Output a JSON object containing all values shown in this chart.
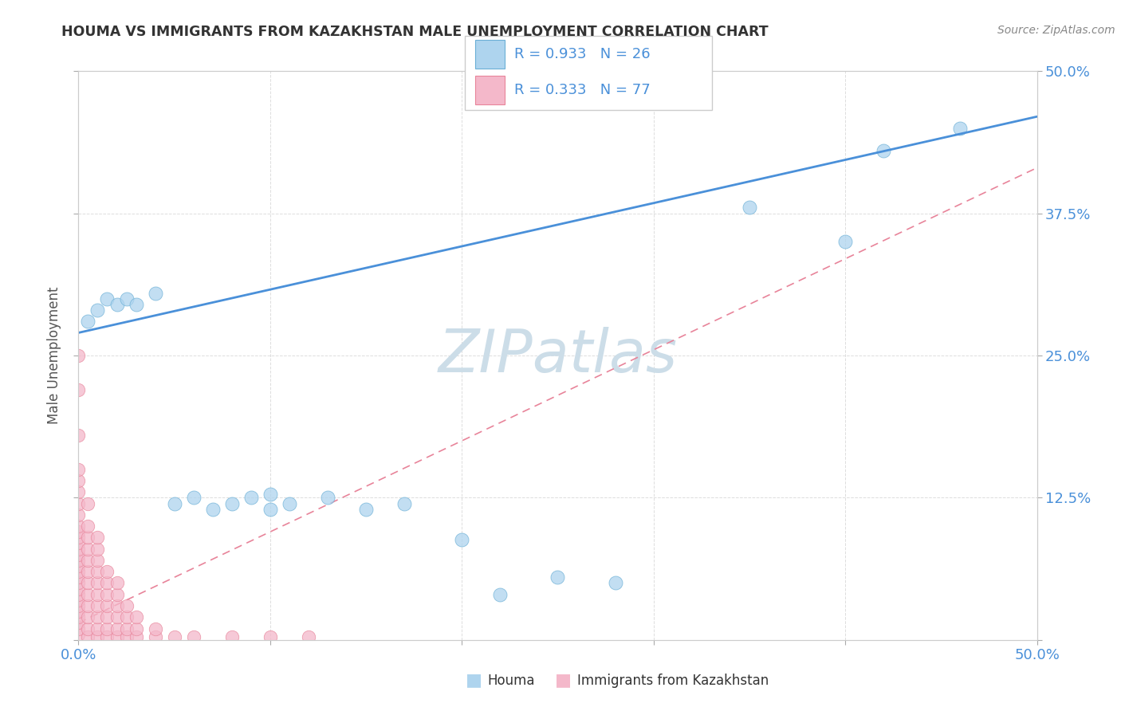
{
  "title": "HOUMA VS IMMIGRANTS FROM KAZAKHSTAN MALE UNEMPLOYMENT CORRELATION CHART",
  "source": "Source: ZipAtlas.com",
  "ylabel": "Male Unemployment",
  "xlim": [
    0,
    0.5
  ],
  "ylim": [
    0,
    0.5
  ],
  "houma_R": 0.933,
  "houma_N": 26,
  "immig_R": 0.333,
  "immig_N": 77,
  "houma_color": "#aed4ee",
  "immig_color": "#f4b8ca",
  "houma_edge_color": "#6aafd6",
  "immig_edge_color": "#e8849a",
  "houma_line_color": "#4a90d9",
  "immig_line_color": "#e8849a",
  "grid_color": "#dddddd",
  "watermark": "ZIPatlas",
  "watermark_color": "#ccdde8",
  "tick_label_color": "#4a90d9",
  "ylabel_color": "#555555",
  "title_color": "#333333",
  "source_color": "#888888",
  "background_color": "#ffffff",
  "houma_line_slope": 0.38,
  "houma_line_intercept": 0.27,
  "immig_line_slope": 0.8,
  "immig_line_intercept": 0.015,
  "houma_scatter": [
    [
      0.005,
      0.28
    ],
    [
      0.01,
      0.29
    ],
    [
      0.015,
      0.3
    ],
    [
      0.02,
      0.295
    ],
    [
      0.025,
      0.3
    ],
    [
      0.03,
      0.295
    ],
    [
      0.04,
      0.305
    ],
    [
      0.05,
      0.12
    ],
    [
      0.06,
      0.125
    ],
    [
      0.07,
      0.115
    ],
    [
      0.08,
      0.12
    ],
    [
      0.09,
      0.125
    ],
    [
      0.1,
      0.115
    ],
    [
      0.11,
      0.12
    ],
    [
      0.13,
      0.125
    ],
    [
      0.15,
      0.115
    ],
    [
      0.17,
      0.12
    ],
    [
      0.1,
      0.128
    ],
    [
      0.2,
      0.088
    ],
    [
      0.22,
      0.04
    ],
    [
      0.25,
      0.055
    ],
    [
      0.28,
      0.05
    ],
    [
      0.35,
      0.38
    ],
    [
      0.4,
      0.35
    ],
    [
      0.42,
      0.43
    ],
    [
      0.46,
      0.45
    ]
  ],
  "immig_scatter": [
    [
      0.0,
      0.005
    ],
    [
      0.0,
      0.01
    ],
    [
      0.0,
      0.015
    ],
    [
      0.0,
      0.02
    ],
    [
      0.0,
      0.025
    ],
    [
      0.0,
      0.03
    ],
    [
      0.0,
      0.035
    ],
    [
      0.0,
      0.04
    ],
    [
      0.0,
      0.045
    ],
    [
      0.0,
      0.05
    ],
    [
      0.0,
      0.055
    ],
    [
      0.0,
      0.06
    ],
    [
      0.0,
      0.065
    ],
    [
      0.0,
      0.07
    ],
    [
      0.0,
      0.075
    ],
    [
      0.0,
      0.08
    ],
    [
      0.0,
      0.085
    ],
    [
      0.0,
      0.09
    ],
    [
      0.0,
      0.095
    ],
    [
      0.0,
      0.1
    ],
    [
      0.0,
      0.11
    ],
    [
      0.0,
      0.12
    ],
    [
      0.0,
      0.13
    ],
    [
      0.0,
      0.14
    ],
    [
      0.0,
      0.15
    ],
    [
      0.0,
      0.18
    ],
    [
      0.0,
      0.22
    ],
    [
      0.0,
      0.25
    ],
    [
      0.005,
      0.003
    ],
    [
      0.005,
      0.01
    ],
    [
      0.005,
      0.02
    ],
    [
      0.005,
      0.03
    ],
    [
      0.005,
      0.04
    ],
    [
      0.005,
      0.05
    ],
    [
      0.005,
      0.06
    ],
    [
      0.005,
      0.07
    ],
    [
      0.005,
      0.08
    ],
    [
      0.005,
      0.09
    ],
    [
      0.005,
      0.1
    ],
    [
      0.005,
      0.12
    ],
    [
      0.01,
      0.003
    ],
    [
      0.01,
      0.01
    ],
    [
      0.01,
      0.02
    ],
    [
      0.01,
      0.03
    ],
    [
      0.01,
      0.04
    ],
    [
      0.01,
      0.05
    ],
    [
      0.01,
      0.06
    ],
    [
      0.01,
      0.07
    ],
    [
      0.01,
      0.08
    ],
    [
      0.01,
      0.09
    ],
    [
      0.015,
      0.003
    ],
    [
      0.015,
      0.01
    ],
    [
      0.015,
      0.02
    ],
    [
      0.015,
      0.03
    ],
    [
      0.015,
      0.04
    ],
    [
      0.015,
      0.05
    ],
    [
      0.015,
      0.06
    ],
    [
      0.02,
      0.003
    ],
    [
      0.02,
      0.01
    ],
    [
      0.02,
      0.02
    ],
    [
      0.02,
      0.03
    ],
    [
      0.02,
      0.04
    ],
    [
      0.02,
      0.05
    ],
    [
      0.025,
      0.003
    ],
    [
      0.025,
      0.01
    ],
    [
      0.025,
      0.02
    ],
    [
      0.025,
      0.03
    ],
    [
      0.03,
      0.003
    ],
    [
      0.03,
      0.01
    ],
    [
      0.03,
      0.02
    ],
    [
      0.04,
      0.003
    ],
    [
      0.04,
      0.01
    ],
    [
      0.05,
      0.003
    ],
    [
      0.06,
      0.003
    ],
    [
      0.08,
      0.003
    ],
    [
      0.1,
      0.003
    ],
    [
      0.12,
      0.003
    ]
  ]
}
